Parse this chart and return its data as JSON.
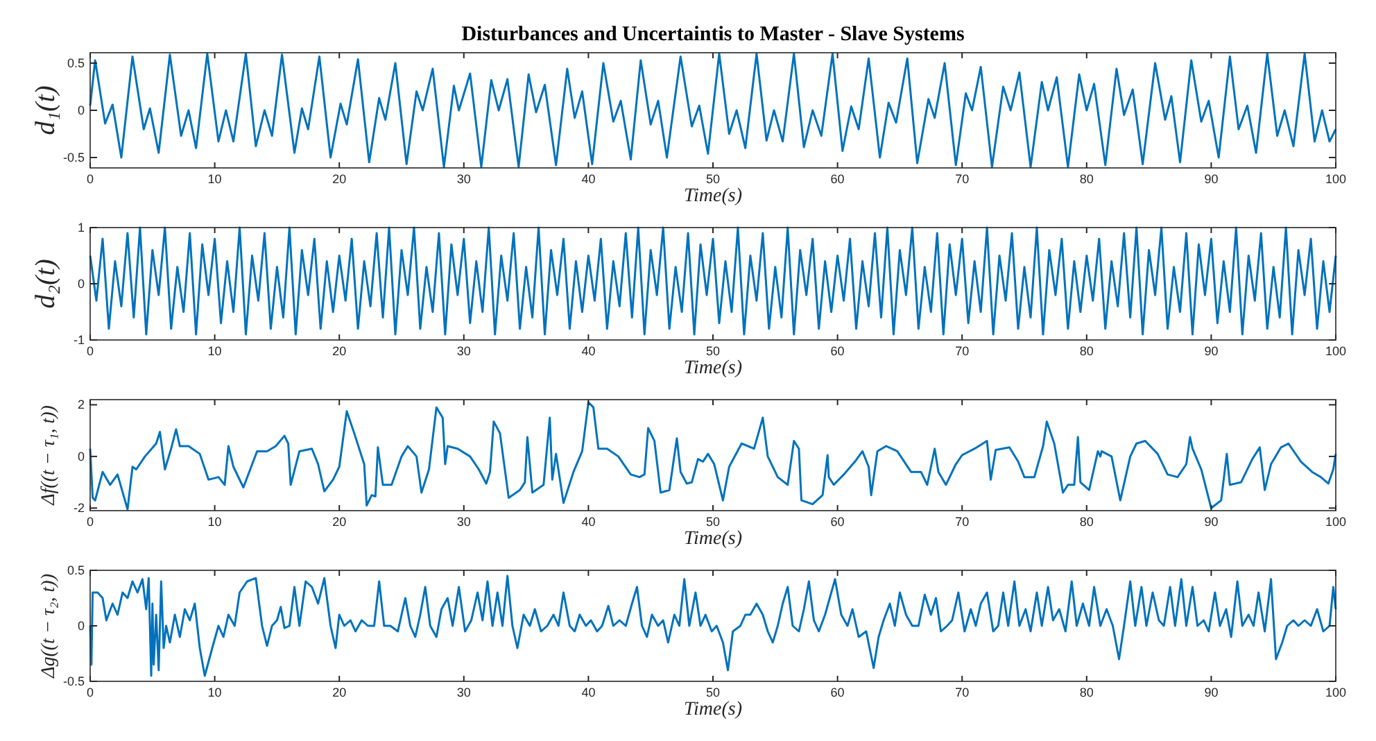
{
  "chart_data": [
    {
      "type": "line",
      "title": "Disturbances and Uncertaintis to Master - Slave Systems",
      "xlabel": "Time(s)",
      "ylabel": "d₁(t)",
      "xlim": [
        0,
        100
      ],
      "ylim": [
        -0.61,
        0.61
      ],
      "xticks": [
        0,
        10,
        20,
        30,
        40,
        50,
        60,
        70,
        80,
        90,
        100
      ],
      "yticks": [
        -0.5,
        0,
        0.5
      ],
      "grid": false,
      "x": [
        0,
        0.4,
        1.2,
        1.8,
        2.5,
        3.4,
        4.3,
        4.8,
        5.5,
        6.4,
        7.3,
        7.9,
        8.5,
        9.4,
        10.3,
        10.9,
        11.5,
        12.5,
        13.3,
        14.0,
        14.6,
        15.4,
        16.4,
        17.0,
        17.5,
        18.4,
        19.3,
        20.1,
        20.6,
        21.5,
        22.4,
        23.2,
        23.7,
        24.5,
        25.4,
        26.2,
        26.7,
        27.5,
        28.4,
        29.2,
        29.6,
        30.5,
        31.4,
        32.2,
        32.8,
        33.5,
        34.4,
        35.2,
        35.8,
        36.5,
        37.4,
        38.3,
        38.9,
        39.5,
        40.3,
        41.2,
        42.0,
        42.6,
        43.4,
        44.2,
        45.0,
        45.6,
        46.3,
        47.4,
        48.3,
        48.9,
        49.6,
        50.5,
        51.3,
        51.9,
        52.6,
        53.5,
        54.3,
        54.9,
        55.6,
        56.5,
        57.3,
        58.0,
        58.7,
        59.6,
        60.4,
        61.1,
        61.7,
        62.5,
        63.4,
        64.1,
        64.7,
        65.6,
        66.4,
        67.3,
        67.8,
        68.6,
        69.5,
        70.3,
        70.8,
        71.5,
        72.4,
        73.3,
        73.9,
        74.6,
        75.5,
        76.4,
        76.9,
        77.6,
        78.5,
        79.4,
        80.0,
        80.6,
        81.5,
        82.4,
        83.0,
        83.7,
        84.5,
        85.5,
        86.3,
        86.8,
        87.5,
        88.4,
        89.2,
        89.8,
        90.6,
        91.5,
        92.2,
        92.9,
        93.6,
        94.5,
        95.3,
        95.9,
        96.6,
        97.5,
        98.3,
        98.9,
        99.5,
        100
      ],
      "series": [
        {
          "color": "#0072bd",
          "values": [
            0.05,
            0.53,
            -0.14,
            0.06,
            -0.5,
            0.57,
            -0.2,
            0.02,
            -0.45,
            0.59,
            -0.27,
            0.0,
            -0.4,
            0.6,
            -0.33,
            0.0,
            -0.33,
            0.6,
            -0.38,
            0.0,
            -0.27,
            0.59,
            -0.45,
            0.02,
            -0.2,
            0.57,
            -0.5,
            0.07,
            -0.15,
            0.54,
            -0.55,
            0.13,
            -0.1,
            0.5,
            -0.57,
            0.2,
            0.0,
            0.44,
            -0.6,
            0.26,
            0.0,
            0.39,
            -0.6,
            0.32,
            0.0,
            0.33,
            -0.6,
            0.38,
            -0.02,
            0.27,
            -0.58,
            0.44,
            -0.08,
            0.2,
            -0.57,
            0.5,
            -0.12,
            0.1,
            -0.52,
            0.53,
            -0.15,
            0.1,
            -0.5,
            0.57,
            -0.17,
            0.05,
            -0.46,
            0.6,
            -0.25,
            0.0,
            -0.4,
            0.6,
            -0.32,
            0.0,
            -0.33,
            0.6,
            -0.39,
            0.0,
            -0.27,
            0.6,
            -0.43,
            0.04,
            -0.2,
            0.55,
            -0.5,
            0.08,
            -0.13,
            0.55,
            -0.56,
            0.12,
            -0.08,
            0.5,
            -0.58,
            0.18,
            0.0,
            0.46,
            -0.6,
            0.25,
            0.0,
            0.4,
            -0.6,
            0.3,
            0.0,
            0.35,
            -0.6,
            0.38,
            0.0,
            0.28,
            -0.58,
            0.44,
            -0.05,
            0.22,
            -0.57,
            0.5,
            -0.1,
            0.15,
            -0.55,
            0.53,
            -0.12,
            0.1,
            -0.5,
            0.57,
            -0.2,
            0.05,
            -0.45,
            0.6,
            -0.27,
            0.0,
            -0.38,
            0.6,
            -0.33,
            0.0,
            -0.33,
            -0.2
          ]
        }
      ]
    },
    {
      "type": "line",
      "xlabel": "Time(s)",
      "ylabel": "d₂(t)",
      "xlim": [
        0,
        100
      ],
      "ylim": [
        -1,
        1
      ],
      "xticks": [
        0,
        10,
        20,
        30,
        40,
        50,
        60,
        70,
        80,
        90,
        100
      ],
      "yticks": [
        -1,
        0,
        1
      ],
      "grid": false,
      "x": [
        0,
        0.5,
        1,
        1.5,
        2,
        2.5,
        3,
        3.5,
        4,
        4.5,
        5,
        5.5,
        6,
        6.5,
        7,
        7.5,
        8,
        8.5,
        9,
        9.5,
        10,
        10.5,
        11,
        11.5,
        12,
        12.5,
        13,
        13.5,
        14,
        14.5,
        15,
        15.5,
        16,
        16.5,
        17,
        17.5,
        18,
        18.5,
        19,
        19.5,
        20,
        20.5,
        21,
        21.5,
        22,
        22.5,
        23,
        23.5,
        24,
        24.5,
        25,
        25.5,
        26,
        26.5,
        27,
        27.5,
        28,
        28.5,
        29,
        29.5,
        30,
        30.5,
        31,
        31.5,
        32,
        32.5,
        33,
        33.5,
        34,
        34.5,
        35,
        35.5,
        36,
        36.5,
        37,
        37.5,
        38,
        38.5,
        39,
        39.5,
        40,
        40.5,
        41,
        41.5,
        42,
        42.5,
        43,
        43.5,
        44,
        44.5,
        45,
        45.5,
        46,
        46.5,
        47,
        47.5,
        48,
        48.5,
        49,
        49.5,
        50,
        50.5,
        51,
        51.5,
        52,
        52.5,
        53,
        53.5,
        54,
        54.5,
        55,
        55.5,
        56,
        56.5,
        57,
        57.5,
        58,
        58.5,
        59,
        59.5,
        60,
        60.5,
        61,
        61.5,
        62,
        62.5,
        63,
        63.5,
        64,
        64.5,
        65,
        65.5,
        66,
        66.5,
        67,
        67.5,
        68,
        68.5,
        69,
        69.5,
        70,
        70.5,
        71,
        71.5,
        72,
        72.5,
        73,
        73.5,
        74,
        74.5,
        75,
        75.5,
        76,
        76.5,
        77,
        77.5,
        78,
        78.5,
        79,
        79.5,
        80,
        80.5,
        81,
        81.5,
        82,
        82.5,
        83,
        83.5,
        84,
        84.5,
        85,
        85.5,
        86,
        86.5,
        87,
        87.5,
        88,
        88.5,
        89,
        89.5,
        90,
        90.5,
        91,
        91.5,
        92,
        92.5,
        93,
        93.5,
        94,
        94.5,
        95,
        95.5,
        96,
        96.5,
        97,
        97.5,
        98,
        98.5,
        99,
        99.5,
        100
      ],
      "series": [
        {
          "color": "#0072bd",
          "values": [
            0.5,
            -0.3,
            0.8,
            -0.8,
            0.4,
            -0.4,
            0.9,
            -0.6,
            1.0,
            -0.9,
            0.6,
            -0.2,
            1.0,
            -0.8,
            0.3,
            -0.5,
            0.9,
            -0.9,
            0.7,
            -0.2,
            0.8,
            -0.7,
            0.4,
            -0.5,
            1.0,
            -0.9,
            0.5,
            -0.3,
            0.9,
            -0.8,
            0.3,
            -0.6,
            1.0,
            -0.9,
            0.6,
            -0.2,
            0.8,
            -0.8,
            0.4,
            -0.5,
            0.5,
            -0.3,
            0.8,
            -0.8,
            0.4,
            -0.4,
            0.9,
            -0.6,
            1.0,
            -0.9,
            0.6,
            -0.2,
            1.0,
            -0.8,
            0.3,
            -0.5,
            0.9,
            -0.9,
            0.7,
            -0.2,
            0.8,
            -0.7,
            0.4,
            -0.5,
            1.0,
            -0.9,
            0.5,
            -0.3,
            0.9,
            -0.8,
            0.3,
            -0.6,
            1.0,
            -0.9,
            0.6,
            -0.2,
            0.8,
            -0.8,
            0.4,
            -0.5,
            0.5,
            -0.3,
            0.8,
            -0.8,
            0.4,
            -0.4,
            0.9,
            -0.6,
            1.0,
            -0.9,
            0.6,
            -0.2,
            1.0,
            -0.8,
            0.3,
            -0.5,
            0.9,
            -0.9,
            0.7,
            -0.2,
            0.8,
            -0.7,
            0.4,
            -0.5,
            1.0,
            -0.9,
            0.5,
            -0.3,
            0.9,
            -0.8,
            0.3,
            -0.6,
            1.0,
            -0.9,
            0.6,
            -0.2,
            0.8,
            -0.8,
            0.4,
            -0.5,
            0.5,
            -0.3,
            0.8,
            -0.8,
            0.4,
            -0.4,
            0.9,
            -0.6,
            1.0,
            -0.9,
            0.6,
            -0.2,
            1.0,
            -0.8,
            0.3,
            -0.5,
            0.9,
            -0.9,
            0.7,
            -0.2,
            0.8,
            -0.7,
            0.4,
            -0.5,
            1.0,
            -0.9,
            0.5,
            -0.3,
            0.9,
            -0.8,
            0.3,
            -0.6,
            1.0,
            -0.9,
            0.6,
            -0.2,
            0.8,
            -0.8,
            0.4,
            -0.5,
            0.5,
            -0.3,
            0.8,
            -0.8,
            0.4,
            -0.4,
            0.9,
            -0.6,
            1.0,
            -0.9,
            0.6,
            -0.2,
            1.0,
            -0.8,
            0.3,
            -0.5,
            0.9,
            -0.9,
            0.7,
            -0.2,
            0.8,
            -0.7,
            0.4,
            -0.5,
            1.0,
            -0.9,
            0.5,
            -0.3,
            0.9,
            -0.8,
            0.3,
            -0.6,
            1.0,
            -0.9,
            0.6,
            -0.2,
            0.8,
            -0.8,
            0.4,
            -0.5,
            0.5
          ]
        }
      ]
    },
    {
      "type": "line",
      "xlabel": "Time(s)",
      "ylabel": "Δf((t − τ₁, t))",
      "xlim": [
        0,
        100
      ],
      "ylim": [
        -2.1,
        2.2
      ],
      "xticks": [
        0,
        10,
        20,
        30,
        40,
        50,
        60,
        70,
        80,
        90,
        100
      ],
      "yticks": [
        -2,
        0,
        2
      ],
      "grid": false,
      "x": [
        0,
        0.2,
        0.4,
        1.0,
        1.6,
        2.2,
        3.0,
        3.4,
        3.7,
        4.4,
        5.3,
        5.6,
        6.0,
        6.5,
        6.9,
        7.2,
        7.9,
        8.8,
        9.5,
        10.3,
        10.8,
        11.1,
        11.5,
        12.3,
        13.4,
        14.2,
        14.9,
        15.6,
        15.9,
        16.1,
        16.8,
        17.8,
        18.3,
        18.8,
        19.5,
        20.0,
        20.6,
        21.2,
        22.0,
        22.2,
        22.6,
        22.9,
        23.1,
        23.5,
        24.2,
        25.0,
        25.5,
        26.2,
        26.6,
        27.2,
        27.8,
        28.3,
        28.5,
        28.7,
        29.5,
        30.5,
        31.2,
        31.8,
        32.1,
        32.4,
        32.9,
        33.6,
        34.5,
        34.9,
        35.1,
        35.5,
        36.4,
        36.9,
        37.1,
        37.4,
        38.0,
        38.8,
        39.5,
        40.0,
        40.4,
        40.8,
        41.5,
        42.4,
        43.4,
        44.1,
        44.5,
        44.8,
        45.3,
        45.8,
        46.5,
        47.1,
        47.4,
        47.9,
        48.3,
        48.8,
        49.2,
        49.6,
        50.1,
        50.8,
        51.3,
        52.3,
        53.3,
        54.0,
        54.4,
        55.2,
        56.0,
        56.5,
        56.9,
        57.1,
        58.0,
        58.8,
        59.2,
        59.3,
        59.7,
        60.5,
        61.4,
        62.0,
        62.5,
        62.7,
        63.2,
        63.9,
        64.8,
        65.9,
        66.7,
        67.2,
        67.8,
        68.1,
        68.7,
        69.5,
        70.0,
        71.0,
        72.0,
        72.3,
        72.7,
        73.8,
        74.5,
        75.0,
        75.8,
        76.5,
        76.8,
        77.4,
        78.1,
        78.5,
        79.0,
        79.3,
        79.5,
        80.2,
        80.9,
        81.1,
        81.2,
        82.0,
        82.7,
        83.5,
        84.0,
        84.7,
        85.7,
        86.5,
        87.3,
        88.0,
        88.3,
        88.5,
        89.2,
        90.0,
        90.8,
        91.25,
        91.5,
        92.4,
        93.3,
        93.9,
        94.3,
        94.8,
        95.6,
        96.2,
        97.2,
        98.1,
        98.8,
        99.4,
        99.8,
        100
      ],
      "series": [
        {
          "color": "#0072bd",
          "values": [
            0.3,
            -1.6,
            -1.7,
            -0.6,
            -1.1,
            -0.7,
            -2.05,
            -0.4,
            -0.5,
            0.0,
            0.5,
            0.95,
            -0.5,
            0.3,
            1.05,
            0.4,
            0.4,
            0.1,
            -0.9,
            -0.8,
            -1.1,
            0.4,
            -0.4,
            -1.2,
            0.2,
            0.2,
            0.4,
            0.8,
            0.5,
            -1.1,
            0.2,
            0.3,
            -0.3,
            -1.35,
            -0.9,
            -0.4,
            1.75,
            0.9,
            -0.3,
            -1.9,
            -1.5,
            -1.55,
            0.35,
            -1.1,
            -1.1,
            0.0,
            0.4,
            0.0,
            -1.4,
            -0.5,
            1.9,
            1.5,
            -0.3,
            0.4,
            0.3,
            0.0,
            -0.5,
            -1.05,
            -0.6,
            1.35,
            0.9,
            -1.6,
            -1.3,
            -1.0,
            0.75,
            -1.4,
            -1.1,
            1.5,
            -0.9,
            0.1,
            -1.8,
            -0.6,
            0.2,
            2.1,
            1.9,
            0.3,
            0.3,
            0.0,
            -0.7,
            -0.8,
            -0.7,
            1.1,
            0.6,
            -1.4,
            -1.3,
            0.7,
            -0.6,
            -1.05,
            -1.0,
            -0.1,
            -0.2,
            0.1,
            -0.3,
            -1.7,
            -0.4,
            0.5,
            0.3,
            1.5,
            0.0,
            -0.8,
            -1.1,
            0.6,
            0.3,
            -1.7,
            -1.85,
            -1.5,
            0.05,
            -0.8,
            -1.1,
            -0.7,
            -0.2,
            0.2,
            -0.4,
            -1.5,
            0.2,
            0.4,
            0.2,
            -0.6,
            -0.6,
            -1.1,
            0.3,
            -0.6,
            -1.1,
            -0.3,
            0.05,
            0.3,
            0.6,
            -0.9,
            0.25,
            0.35,
            -0.2,
            -0.8,
            -0.8,
            0.4,
            1.35,
            0.5,
            -1.4,
            -1.1,
            -1.1,
            0.75,
            -1.0,
            -1.3,
            0.2,
            0.0,
            0.2,
            0.0,
            -1.7,
            0.0,
            0.5,
            0.6,
            0.1,
            -0.7,
            -0.8,
            -0.3,
            0.75,
            0.3,
            -0.5,
            -2.0,
            -1.7,
            0.1,
            -1.1,
            -1.0,
            -0.1,
            0.35,
            -1.3,
            -0.3,
            0.35,
            0.5,
            -0.2,
            -0.6,
            -0.8,
            -1.05,
            -0.5,
            0.1
          ]
        }
      ]
    },
    {
      "type": "line",
      "xlabel": "Time(s)",
      "ylabel": "Δg((t − τ₂, t))",
      "xlim": [
        0,
        100
      ],
      "ylim": [
        -0.5,
        0.5
      ],
      "xticks": [
        0,
        10,
        20,
        30,
        40,
        50,
        60,
        70,
        80,
        90,
        100
      ],
      "yticks": [
        -0.5,
        0,
        0.5
      ],
      "grid": false,
      "x": [
        0,
        0.1,
        0.2,
        0.6,
        1.0,
        1.3,
        1.8,
        2.2,
        2.6,
        3.0,
        3.4,
        3.8,
        4.2,
        4.5,
        4.7,
        4.9,
        5.0,
        5.1,
        5.3,
        5.5,
        5.7,
        5.9,
        6.1,
        6.4,
        6.8,
        7.2,
        7.6,
        8.0,
        8.4,
        8.8,
        9.2,
        9.8,
        10.3,
        10.7,
        11.1,
        11.6,
        12.0,
        12.6,
        13.3,
        13.8,
        14.2,
        14.6,
        15.0,
        15.3,
        15.6,
        16.0,
        16.4,
        16.8,
        17.3,
        17.8,
        18.3,
        18.8,
        19.3,
        19.7,
        20.0,
        20.4,
        20.9,
        21.3,
        21.8,
        22.3,
        22.8,
        23.2,
        23.6,
        24.1,
        24.7,
        25.3,
        25.7,
        26.1,
        26.5,
        26.9,
        27.3,
        27.8,
        28.2,
        28.7,
        29.1,
        29.6,
        30.1,
        30.6,
        31.1,
        31.5,
        31.9,
        32.3,
        32.7,
        33.1,
        33.5,
        33.9,
        34.3,
        34.8,
        35.3,
        35.7,
        36.2,
        36.7,
        37.2,
        37.6,
        38.0,
        38.5,
        38.9,
        39.3,
        39.8,
        40.2,
        40.7,
        41.1,
        41.6,
        42.0,
        42.5,
        43.0,
        43.5,
        43.9,
        44.3,
        44.7,
        45.1,
        45.6,
        46.0,
        46.4,
        46.9,
        47.3,
        47.7,
        48.1,
        48.6,
        49.0,
        49.4,
        49.9,
        50.3,
        50.8,
        51.2,
        51.6,
        52.2,
        52.6,
        53.0,
        53.5,
        54.0,
        54.4,
        54.8,
        55.2,
        55.6,
        56.0,
        56.4,
        56.9,
        57.3,
        57.7,
        58.1,
        58.5,
        59.0,
        59.5,
        59.8,
        60.3,
        60.8,
        61.2,
        61.7,
        62.3,
        62.9,
        63.3,
        63.7,
        64.2,
        64.6,
        65.0,
        65.5,
        66.0,
        66.5,
        67.0,
        67.5,
        67.9,
        68.3,
        68.8,
        69.2,
        69.7,
        70.2,
        70.7,
        71.1,
        71.5,
        72.0,
        72.5,
        72.9,
        73.3,
        73.7,
        74.2,
        74.6,
        75.1,
        75.5,
        76.0,
        76.4,
        76.9,
        77.3,
        77.8,
        78.3,
        78.8,
        79.2,
        79.7,
        80.2,
        80.6,
        81.1,
        81.6,
        82.1,
        82.6,
        83.0,
        83.5,
        83.9,
        84.4,
        84.8,
        85.3,
        85.8,
        86.2,
        86.7,
        87.1,
        87.6,
        88.0,
        88.5,
        88.9,
        89.4,
        89.8,
        90.3,
        90.7,
        91.2,
        91.6,
        92.1,
        92.5,
        93.0,
        93.4,
        93.8,
        94.3,
        94.8,
        95.2,
        95.7,
        96.1,
        96.6,
        97.0,
        97.5,
        98.0,
        98.5,
        99.0,
        99.5,
        99.8,
        100
      ],
      "series": [
        {
          "color": "#0072bd",
          "values": [
            0.0,
            -0.35,
            0.3,
            0.3,
            0.25,
            0.05,
            0.2,
            0.1,
            0.3,
            0.25,
            0.4,
            0.3,
            0.42,
            0.15,
            0.43,
            -0.45,
            0.2,
            -0.35,
            0.1,
            -0.4,
            0.4,
            -0.2,
            0.0,
            -0.15,
            0.1,
            -0.1,
            0.15,
            0.05,
            0.2,
            -0.2,
            -0.45,
            -0.2,
            0.0,
            -0.1,
            0.1,
            0.0,
            0.3,
            0.4,
            0.43,
            0.0,
            -0.18,
            0.0,
            0.05,
            0.17,
            -0.02,
            0.0,
            0.35,
            0.0,
            0.4,
            0.35,
            0.2,
            0.43,
            0.0,
            -0.2,
            0.1,
            0.0,
            0.05,
            -0.05,
            0.05,
            0.0,
            0.0,
            0.4,
            0.0,
            0.0,
            -0.05,
            0.25,
            0.0,
            -0.1,
            0.1,
            0.35,
            0.0,
            -0.1,
            0.15,
            0.25,
            0.0,
            0.35,
            -0.05,
            0.05,
            0.3,
            0.05,
            0.4,
            0.0,
            0.3,
            0.0,
            0.45,
            0.0,
            -0.2,
            0.1,
            0.0,
            0.15,
            -0.05,
            0.0,
            0.1,
            0.0,
            0.3,
            0.0,
            -0.05,
            0.1,
            0.0,
            0.05,
            -0.05,
            0.0,
            0.18,
            0.0,
            0.05,
            0.0,
            0.2,
            0.35,
            0.0,
            -0.1,
            0.1,
            0.0,
            0.05,
            -0.15,
            0.1,
            0.0,
            0.42,
            0.0,
            0.3,
            0.0,
            0.1,
            -0.05,
            0.0,
            -0.15,
            -0.4,
            -0.05,
            0.0,
            0.1,
            0.1,
            0.2,
            0.1,
            -0.05,
            -0.15,
            0.0,
            0.2,
            0.35,
            0.0,
            -0.05,
            0.15,
            0.4,
            0.05,
            -0.05,
            0.1,
            0.3,
            0.42,
            0.1,
            0.0,
            0.15,
            -0.1,
            -0.05,
            -0.38,
            -0.1,
            0.05,
            0.2,
            0.0,
            0.3,
            0.1,
            0.0,
            0.0,
            0.28,
            0.1,
            0.25,
            -0.05,
            0.0,
            0.05,
            0.3,
            -0.05,
            0.15,
            0.0,
            0.2,
            0.3,
            -0.05,
            0.0,
            0.3,
            0.0,
            0.4,
            0.0,
            0.15,
            -0.05,
            0.3,
            0.0,
            0.35,
            0.05,
            0.15,
            -0.05,
            0.4,
            0.0,
            0.2,
            0.0,
            0.35,
            0.0,
            0.15,
            0.0,
            -0.3,
            0.0,
            0.4,
            0.0,
            0.35,
            0.0,
            0.3,
            0.05,
            0.0,
            0.35,
            0.0,
            0.42,
            0.0,
            0.35,
            0.0,
            0.05,
            -0.05,
            0.3,
            0.0,
            0.15,
            -0.1,
            0.4,
            0.0,
            0.1,
            0.0,
            0.3,
            -0.05,
            0.42,
            -0.3,
            -0.15,
            0.0,
            0.05,
            0.0,
            0.05,
            0.0,
            0.15,
            -0.05,
            0.0,
            0.35,
            0.15
          ]
        }
      ]
    }
  ]
}
